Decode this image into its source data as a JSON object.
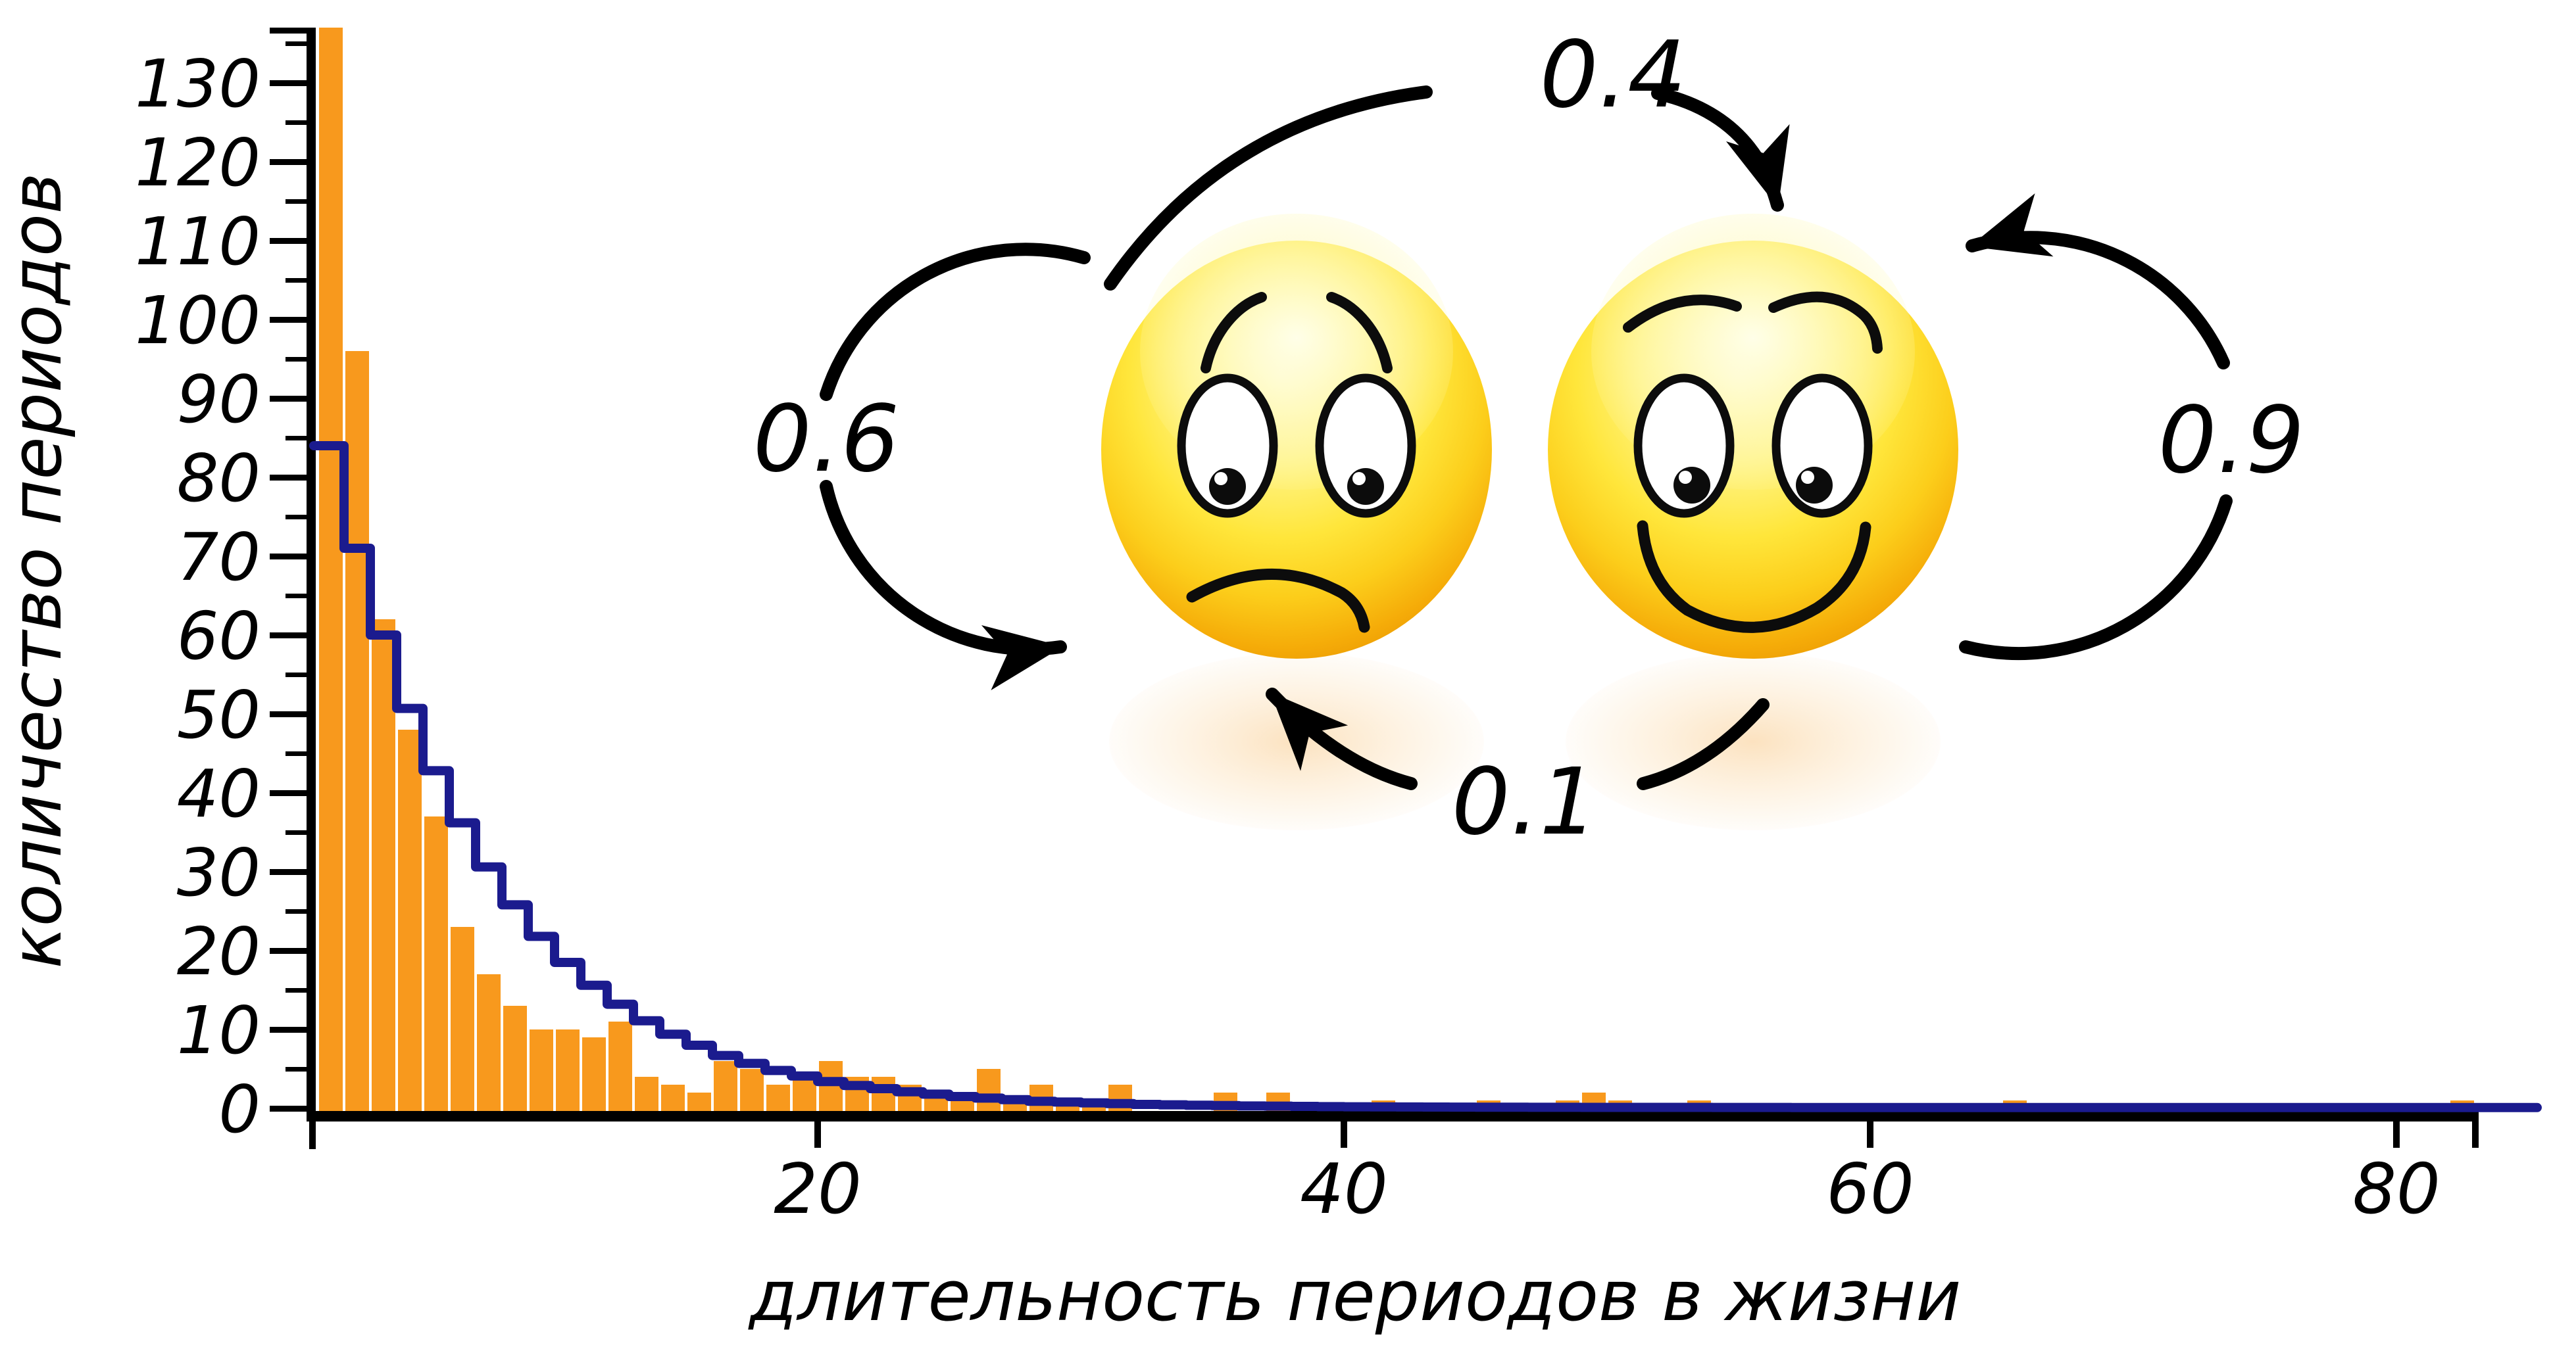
{
  "chart_data": {
    "type": "bar",
    "subtype": "histogram with stepped geometric fit line",
    "title": "",
    "xlabel": "длительность периодов в жизни",
    "ylabel": "количество периодов",
    "x_ticks": [
      20,
      40,
      60,
      80
    ],
    "y_ticks": [
      0,
      10,
      20,
      30,
      40,
      50,
      60,
      70,
      80,
      90,
      100,
      110,
      120,
      130
    ],
    "xlim": [
      0,
      84
    ],
    "ylim": [
      0,
      137
    ],
    "grid": false,
    "legend": "none",
    "bar_color": "#F8991D",
    "bar_separator_color": "#FFFFFF",
    "line_color": "#1B1B8E",
    "axis_color": "#000000",
    "bins_start": 1,
    "bar_values": [
      137,
      96,
      62,
      48,
      37,
      23,
      17,
      13,
      10,
      10,
      9,
      11,
      4,
      3,
      2,
      6,
      5,
      3,
      4,
      6,
      4,
      4,
      3,
      2,
      2,
      5,
      1,
      3,
      1,
      1,
      3,
      0,
      0,
      0,
      2,
      0,
      2,
      0,
      0,
      0,
      1,
      0,
      0,
      0,
      1,
      0,
      0,
      1,
      2,
      1,
      0,
      0,
      1,
      0,
      0,
      0,
      0,
      0,
      0,
      0,
      0,
      0,
      0,
      0,
      1,
      0,
      0,
      0,
      0,
      0,
      0,
      0,
      0,
      0,
      0,
      0,
      0,
      0,
      0,
      0,
      0,
      1,
      0,
      0
    ],
    "line_values": [
      84,
      71,
      60,
      50.7,
      42.8,
      36.2,
      30.6,
      25.8,
      21.8,
      18.5,
      15.6,
      13.2,
      11.1,
      9.4,
      8,
      6.7,
      5.7,
      4.8,
      4.1,
      3.4,
      2.9,
      2.5,
      2.1,
      1.8,
      1.5,
      1.3,
      1.1,
      0.9,
      0.8,
      0.7,
      0.6,
      0.5,
      0.45,
      0.4,
      0.35,
      0.3,
      0.28,
      0.25,
      0.22,
      0.2,
      0.19,
      0.18,
      0.17,
      0.16,
      0.15,
      0.15,
      0.14,
      0.14,
      0.13,
      0.13,
      0.12,
      0.12,
      0.12,
      0.11,
      0.11,
      0.11,
      0.1,
      0.1,
      0.1,
      0.1,
      0.1,
      0.1,
      0.1,
      0.1,
      0.1,
      0.1,
      0.1,
      0.1,
      0.1,
      0.1,
      0.1,
      0.1,
      0.1,
      0.1,
      0.1,
      0.1,
      0.1,
      0.1,
      0.1,
      0.1,
      0.1,
      0.1,
      0.1,
      0.1
    ]
  },
  "diagram": {
    "description": "two-state mood Markov chain",
    "states": [
      {
        "id": "sad",
        "icon": "sad-face-icon"
      },
      {
        "id": "happy",
        "icon": "happy-face-icon"
      }
    ],
    "transitions": [
      {
        "from": "sad",
        "to": "happy",
        "prob": "0.4"
      },
      {
        "from": "sad",
        "to": "sad",
        "prob": "0.6"
      },
      {
        "from": "happy",
        "to": "happy",
        "prob": "0.9"
      },
      {
        "from": "happy",
        "to": "sad",
        "prob": "0.1"
      }
    ]
  }
}
